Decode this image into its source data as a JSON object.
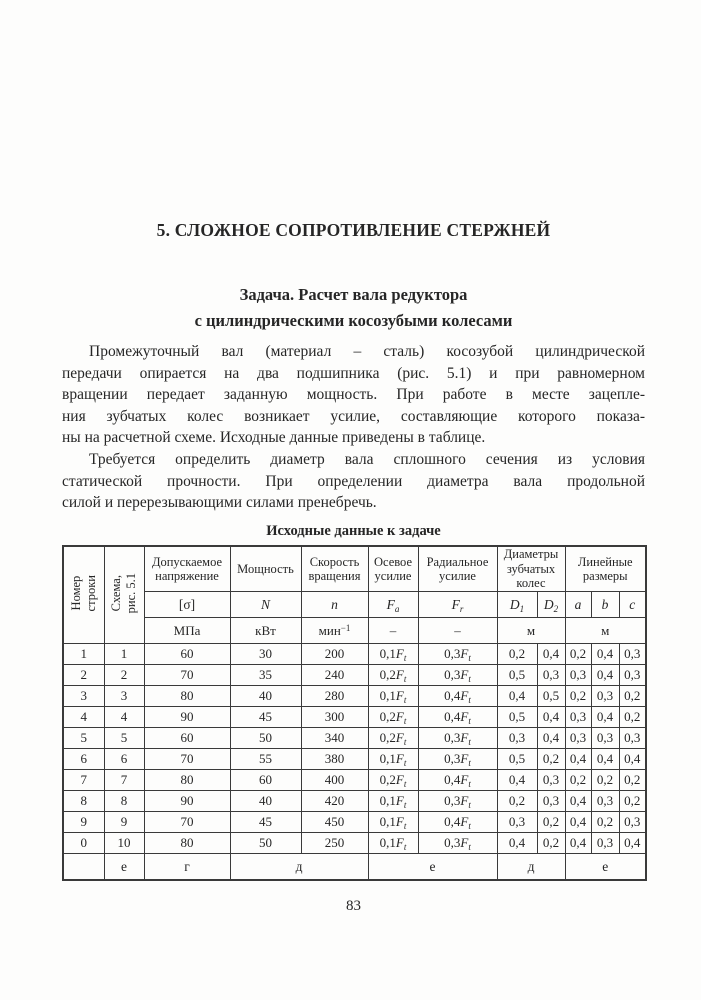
{
  "page": {
    "title": "5. СЛОЖНОЕ СОПРОТИВЛЕНИЕ СТЕРЖНЕЙ",
    "subtitle": "Задача. Расчет вала редуктора\nс цилиндрическими косозубыми колесами",
    "paragraph1_lines": [
      "Промежуточный вал (материал – сталь) косозубой цилиндрической",
      "передачи опирается на два подшипника (рис. 5.1) и при равномерном",
      "вращении передает заданную мощность. При работе в месте зацепле-",
      "ния зубчатых колес возникает усилие, составляющие которого показа-",
      "ны на расчетной схеме. Исходные данные приведены в таблице."
    ],
    "paragraph2_lines": [
      "Требуется определить диаметр вала сплошного сечения из условия",
      "статической прочности. При определении диаметра вала продольной",
      "силой и перерезывающими силами пренебречь."
    ],
    "table_caption": "Исходные данные к задаче",
    "page_number": "83"
  },
  "table": {
    "header": {
      "row_number": "Номер\nстроки",
      "scheme": "Схема,\nрис. 5.1",
      "allowable_stress": "Допускаемое\nнапряжение",
      "power": "Мощность",
      "speed": "Скорость\nвращения",
      "axial_force": "Осевое\nусилие",
      "radial_force": "Радиальное\nусилие",
      "gear_diameters": "Диаметры\nзубчатых\nколес",
      "linear_dimensions": "Линейные\nразмеры",
      "symbols": {
        "stress": "[σ]",
        "power": {
          "sym": "N"
        },
        "speed": {
          "sym": "n"
        },
        "axial": {
          "sym": "F",
          "sub": "a"
        },
        "radial": {
          "sym": "F",
          "sub": "r"
        },
        "d1": {
          "sym": "D",
          "sub": "1"
        },
        "d2": {
          "sym": "D",
          "sub": "2"
        },
        "a": {
          "sym": "a"
        },
        "b": {
          "sym": "b"
        },
        "c": {
          "sym": "c"
        }
      },
      "units": {
        "stress": "МПа",
        "power": "кВт",
        "speed": {
          "pre": "мин",
          "sup": "−1"
        },
        "axial": "–",
        "radial": "–",
        "diameters": "м",
        "linear": "м"
      }
    },
    "rows": [
      [
        "1",
        "1",
        "60",
        "30",
        "200",
        {
          "pre": "0,1",
          "sym": "F",
          "sub": "t"
        },
        {
          "pre": "0,3",
          "sym": "F",
          "sub": "t"
        },
        "0,2",
        "0,4",
        "0,2",
        "0,4",
        "0,3"
      ],
      [
        "2",
        "2",
        "70",
        "35",
        "240",
        {
          "pre": "0,2",
          "sym": "F",
          "sub": "t"
        },
        {
          "pre": "0,3",
          "sym": "F",
          "sub": "t"
        },
        "0,5",
        "0,3",
        "0,3",
        "0,4",
        "0,3"
      ],
      [
        "3",
        "3",
        "80",
        "40",
        "280",
        {
          "pre": "0,1",
          "sym": "F",
          "sub": "t"
        },
        {
          "pre": "0,4",
          "sym": "F",
          "sub": "t"
        },
        "0,4",
        "0,5",
        "0,2",
        "0,3",
        "0,2"
      ],
      [
        "4",
        "4",
        "90",
        "45",
        "300",
        {
          "pre": "0,2",
          "sym": "F",
          "sub": "t"
        },
        {
          "pre": "0,4",
          "sym": "F",
          "sub": "t"
        },
        "0,5",
        "0,4",
        "0,3",
        "0,4",
        "0,2"
      ],
      [
        "5",
        "5",
        "60",
        "50",
        "340",
        {
          "pre": "0,2",
          "sym": "F",
          "sub": "t"
        },
        {
          "pre": "0,3",
          "sym": "F",
          "sub": "t"
        },
        "0,3",
        "0,4",
        "0,3",
        "0,3",
        "0,3"
      ],
      [
        "6",
        "6",
        "70",
        "55",
        "380",
        {
          "pre": "0,1",
          "sym": "F",
          "sub": "t"
        },
        {
          "pre": "0,3",
          "sym": "F",
          "sub": "t"
        },
        "0,5",
        "0,2",
        "0,4",
        "0,4",
        "0,4"
      ],
      [
        "7",
        "7",
        "80",
        "60",
        "400",
        {
          "pre": "0,2",
          "sym": "F",
          "sub": "t"
        },
        {
          "pre": "0,4",
          "sym": "F",
          "sub": "t"
        },
        "0,4",
        "0,3",
        "0,2",
        "0,2",
        "0,2"
      ],
      [
        "8",
        "8",
        "90",
        "40",
        "420",
        {
          "pre": "0,1",
          "sym": "F",
          "sub": "t"
        },
        {
          "pre": "0,3",
          "sym": "F",
          "sub": "t"
        },
        "0,2",
        "0,3",
        "0,4",
        "0,3",
        "0,2"
      ],
      [
        "9",
        "9",
        "70",
        "45",
        "450",
        {
          "pre": "0,1",
          "sym": "F",
          "sub": "t"
        },
        {
          "pre": "0,4",
          "sym": "F",
          "sub": "t"
        },
        "0,3",
        "0,2",
        "0,4",
        "0,2",
        "0,3"
      ],
      [
        "0",
        "10",
        "80",
        "50",
        "250",
        {
          "pre": "0,1",
          "sym": "F",
          "sub": "t"
        },
        {
          "pre": "0,3",
          "sym": "F",
          "sub": "t"
        },
        "0,4",
        "0,2",
        "0,4",
        "0,3",
        "0,4"
      ]
    ],
    "footer": [
      {
        "t": "",
        "cs": 1
      },
      {
        "t": "е",
        "cs": 1
      },
      {
        "t": "г",
        "cs": 1
      },
      {
        "t": "д",
        "cs": 2
      },
      {
        "t": "е",
        "cs": 2
      },
      {
        "t": "д",
        "cs": 2
      },
      {
        "t": "е",
        "cs": 3
      }
    ]
  }
}
